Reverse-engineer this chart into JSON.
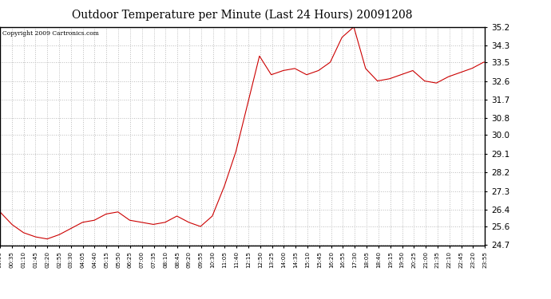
{
  "title": "Outdoor Temperature per Minute (Last 24 Hours) 20091208",
  "copyright": "Copyright 2009 Cartronics.com",
  "background_color": "#ffffff",
  "plot_background": "#ffffff",
  "line_color": "#cc0000",
  "grid_color": "#bbbbbb",
  "yticks": [
    24.7,
    25.6,
    26.4,
    27.3,
    28.2,
    29.1,
    30.0,
    30.8,
    31.7,
    32.6,
    33.5,
    34.3,
    35.2
  ],
  "ymin": 24.7,
  "ymax": 35.2,
  "xtick_labels": [
    "00:00",
    "00:35",
    "01:10",
    "01:45",
    "02:20",
    "02:55",
    "03:30",
    "04:05",
    "04:40",
    "05:15",
    "05:50",
    "06:25",
    "07:00",
    "07:35",
    "08:10",
    "08:45",
    "09:20",
    "09:55",
    "10:30",
    "11:05",
    "11:40",
    "12:15",
    "12:50",
    "13:25",
    "14:00",
    "14:35",
    "15:10",
    "15:45",
    "16:20",
    "16:55",
    "17:30",
    "18:05",
    "18:40",
    "19:15",
    "19:50",
    "20:25",
    "21:00",
    "21:35",
    "22:10",
    "22:45",
    "23:20",
    "23:55"
  ],
  "temperature_profile_x": [
    0,
    35,
    70,
    105,
    140,
    175,
    210,
    245,
    280,
    315,
    350,
    385,
    420,
    455,
    490,
    525,
    560,
    595,
    630,
    665,
    700,
    735,
    770,
    805,
    840,
    875,
    910,
    945,
    980,
    1015,
    1050,
    1085,
    1120,
    1155,
    1190,
    1225,
    1260,
    1295,
    1330,
    1365,
    1400,
    1435
  ],
  "temperature_profile_y": [
    26.3,
    25.7,
    25.3,
    25.1,
    25.0,
    25.2,
    25.5,
    25.8,
    25.9,
    26.2,
    26.3,
    25.9,
    25.8,
    25.7,
    25.8,
    26.1,
    25.8,
    25.6,
    26.1,
    27.5,
    29.2,
    31.5,
    33.8,
    32.9,
    33.1,
    33.2,
    32.9,
    33.1,
    33.5,
    34.7,
    35.2,
    33.2,
    32.6,
    32.7,
    32.9,
    33.1,
    32.6,
    32.5,
    32.8,
    33.0,
    33.2,
    33.5
  ]
}
